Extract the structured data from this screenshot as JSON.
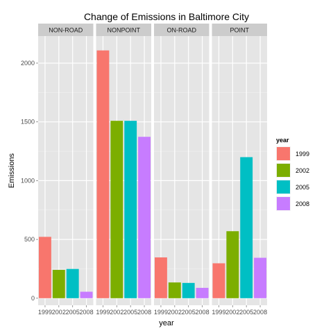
{
  "chart_data": {
    "type": "bar",
    "title": "Change of Emissions in Baltimore City",
    "xlabel": "year",
    "ylabel": "Emissions",
    "categories": [
      "1999",
      "2002",
      "2005",
      "2008"
    ],
    "facets": [
      {
        "label": "NON-ROAD",
        "values": [
          522,
          241,
          249,
          55
        ]
      },
      {
        "label": "NONPOINT",
        "values": [
          2108,
          1509,
          1509,
          1373
        ]
      },
      {
        "label": "ON-ROAD",
        "values": [
          347,
          134,
          130,
          88
        ]
      },
      {
        "label": "POINT",
        "values": [
          297,
          570,
          1200,
          344
        ]
      }
    ],
    "ylim": [
      -60,
      2230
    ],
    "yticks": [
      0,
      500,
      1000,
      1500,
      2000
    ],
    "legend": {
      "title": "year",
      "placement": "right",
      "entries": [
        "1999",
        "2002",
        "2005",
        "2008"
      ]
    },
    "colors": [
      "#f8766d",
      "#7cae00",
      "#00bfc4",
      "#c77cff"
    ],
    "panel_background": "#e5e5e5",
    "strip_background": "#cccccc",
    "grid": true
  }
}
